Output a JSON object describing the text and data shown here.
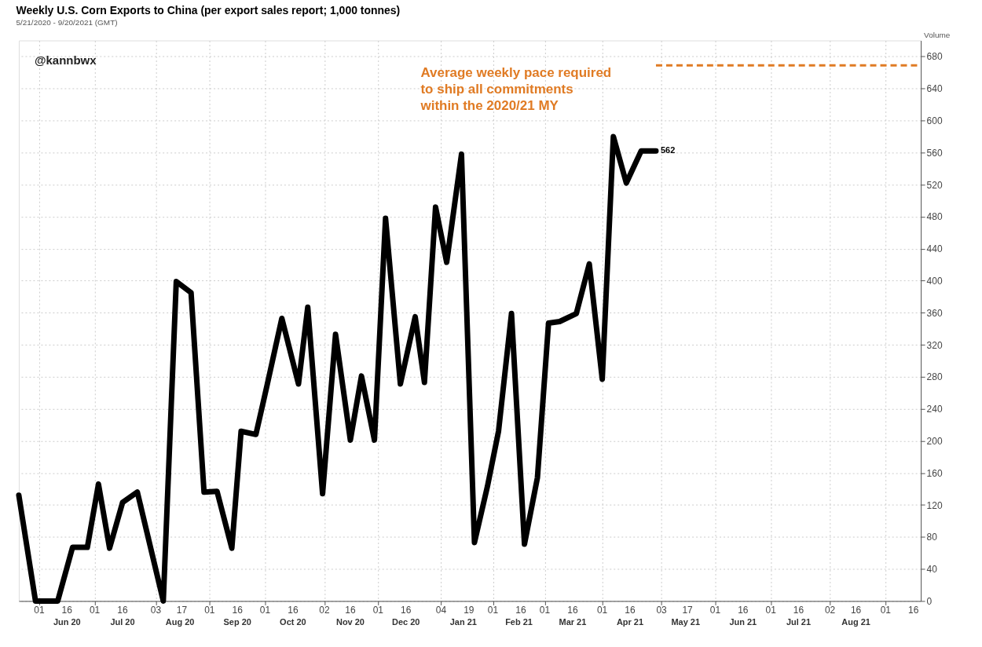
{
  "chart_data": {
    "type": "line",
    "title": "Weekly U.S. Corn Exports to China (per export sales report; 1,000 tonnes)",
    "subtitle": "5/21/2020 - 9/20/2021 (GMT)",
    "ylabel": "Volume",
    "x": [
      "2020-05-21",
      "2020-05-30",
      "2020-06-05",
      "2020-06-11",
      "2020-06-19",
      "2020-06-27",
      "2020-07-03",
      "2020-07-09",
      "2020-07-16",
      "2020-07-24",
      "2020-07-31",
      "2020-08-07",
      "2020-08-14",
      "2020-08-22",
      "2020-08-29",
      "2020-09-05",
      "2020-09-13",
      "2020-09-18",
      "2020-09-26",
      "2020-10-02",
      "2020-10-10",
      "2020-10-19",
      "2020-10-24",
      "2020-11-01",
      "2020-11-08",
      "2020-11-16",
      "2020-11-22",
      "2020-11-29",
      "2020-12-05",
      "2020-12-13",
      "2020-12-21",
      "2020-12-26",
      "2021-01-01",
      "2021-01-07",
      "2021-01-15",
      "2021-01-22",
      "2021-01-29",
      "2021-02-04",
      "2021-02-11",
      "2021-02-18",
      "2021-02-25",
      "2021-03-03",
      "2021-03-09",
      "2021-03-18",
      "2021-03-25",
      "2021-04-01",
      "2021-04-07",
      "2021-04-14",
      "2021-04-22",
      "2021-04-30"
    ],
    "series": [
      {
        "color": "#000000",
        "values": [
          132,
          0,
          0,
          0,
          67,
          67,
          146,
          66,
          123,
          136,
          68,
          0,
          399,
          385,
          136,
          137,
          66,
          212,
          208,
          269,
          353,
          271,
          367,
          134,
          333,
          201,
          281,
          201,
          478,
          271,
          355,
          273,
          492,
          423,
          558,
          73,
          143,
          212,
          359,
          71,
          154,
          347,
          349,
          359,
          421,
          277,
          580,
          522,
          562,
          562
        ]
      }
    ],
    "xlim": [
      "2020-05-21",
      "2021-09-20"
    ],
    "xticks": [
      {
        "value": "2020-06-01",
        "label": "01"
      },
      {
        "value": "2020-06-16",
        "label": "16"
      },
      {
        "value": "2020-07-01",
        "label": "01"
      },
      {
        "value": "2020-07-16",
        "label": "16"
      },
      {
        "value": "2020-08-03",
        "label": "03"
      },
      {
        "value": "2020-08-17",
        "label": "17"
      },
      {
        "value": "2020-09-01",
        "label": "01"
      },
      {
        "value": "2020-09-16",
        "label": "16"
      },
      {
        "value": "2020-10-01",
        "label": "01"
      },
      {
        "value": "2020-10-16",
        "label": "16"
      },
      {
        "value": "2020-11-02",
        "label": "02"
      },
      {
        "value": "2020-11-16",
        "label": "16"
      },
      {
        "value": "2020-12-01",
        "label": "01"
      },
      {
        "value": "2020-12-16",
        "label": "16"
      },
      {
        "value": "2021-01-04",
        "label": "04"
      },
      {
        "value": "2021-01-19",
        "label": "19"
      },
      {
        "value": "2021-02-01",
        "label": "01"
      },
      {
        "value": "2021-02-16",
        "label": "16"
      },
      {
        "value": "2021-03-01",
        "label": "01"
      },
      {
        "value": "2021-03-16",
        "label": "16"
      },
      {
        "value": "2021-04-01",
        "label": "01"
      },
      {
        "value": "2021-04-16",
        "label": "16"
      },
      {
        "value": "2021-05-03",
        "label": "03"
      },
      {
        "value": "2021-05-17",
        "label": "17"
      },
      {
        "value": "2021-06-01",
        "label": "01"
      },
      {
        "value": "2021-06-16",
        "label": "16"
      },
      {
        "value": "2021-07-01",
        "label": "01"
      },
      {
        "value": "2021-07-16",
        "label": "16"
      },
      {
        "value": "2021-08-02",
        "label": "02"
      },
      {
        "value": "2021-08-16",
        "label": "16"
      },
      {
        "value": "2021-09-01",
        "label": "01"
      },
      {
        "value": "2021-09-16",
        "label": "16"
      }
    ],
    "x2lim": [
      "2020-05-21",
      "2021-09-20"
    ],
    "x2ticks": [
      {
        "value": "2020-06-16",
        "label": "Jun 20"
      },
      {
        "value": "2020-07-16",
        "label": "Jul 20"
      },
      {
        "value": "2020-08-16",
        "label": "Aug 20"
      },
      {
        "value": "2020-09-16",
        "label": "Sep 20"
      },
      {
        "value": "2020-10-16",
        "label": "Oct 20"
      },
      {
        "value": "2020-11-16",
        "label": "Nov 20"
      },
      {
        "value": "2020-12-16",
        "label": "Dec 20"
      },
      {
        "value": "2021-01-16",
        "label": "Jan 21"
      },
      {
        "value": "2021-02-15",
        "label": "Feb 21"
      },
      {
        "value": "2021-03-16",
        "label": "Mar 21"
      },
      {
        "value": "2021-04-16",
        "label": "Apr 21"
      },
      {
        "value": "2021-05-16",
        "label": "May 21"
      },
      {
        "value": "2021-06-16",
        "label": "Jun 21"
      },
      {
        "value": "2021-07-16",
        "label": "Jul 21"
      },
      {
        "value": "2021-08-16",
        "label": "Aug 21"
      }
    ],
    "ylim": [
      0,
      700
    ],
    "yticks": [
      0,
      40,
      80,
      120,
      160,
      200,
      240,
      280,
      320,
      360,
      400,
      440,
      480,
      520,
      560,
      600,
      640,
      680
    ],
    "ref_lines": [
      {
        "axis": "y",
        "value": 669,
        "label": "Average weekly pace required\nto ship all commitments\nwithin the 2020/21 MY",
        "color": "#e07b24",
        "line_style": "dashed"
      }
    ],
    "annotations": [
      "@kannbwx",
      {
        "text": "562",
        "x": "2021-04-30",
        "y": 562
      }
    ],
    "grid": true,
    "line_style": "solid",
    "marker": "none"
  }
}
